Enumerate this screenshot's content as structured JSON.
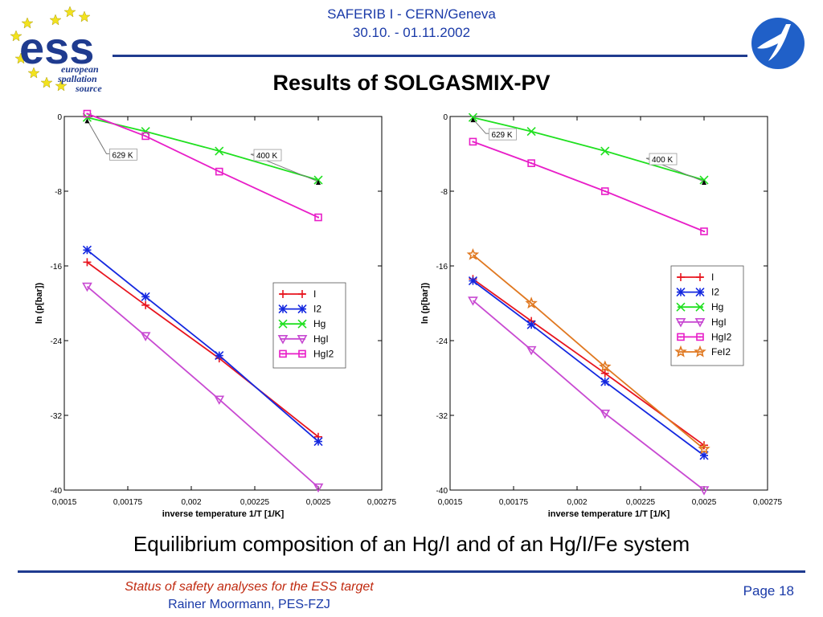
{
  "header": {
    "event": "SAFERIB I - CERN/Geneva",
    "dates": "30.10. - 01.11.2002"
  },
  "logo": {
    "letters": "ess",
    "line1": "european",
    "line2": "spallation",
    "line3": "source"
  },
  "slide_title": "Results of SOLGASMIX-PV",
  "caption": "Equilibrium composition of an Hg/I and of an Hg/I/Fe system",
  "footer": {
    "line1": "Status of safety analyses for the ESS target",
    "line2": "Rainer Moormann, PES-FZJ",
    "page": "Page 18"
  },
  "chart_data": [
    {
      "type": "line",
      "xlabel": "inverse temperature 1/T [1/K]",
      "ylabel": "ln (p[bar])",
      "xlim": [
        0.0015,
        0.00275
      ],
      "ylim": [
        -40,
        0
      ],
      "xticks": [
        "0,0015",
        "0,00175",
        "0,002",
        "0,00225",
        "0,0025",
        "0,00275"
      ],
      "yticks": [
        "0",
        "-8",
        "-16",
        "-24",
        "-32",
        "-40"
      ],
      "legend_position": "right-middle",
      "annotations": [
        {
          "text": "629 K",
          "x": 0.00159,
          "y": -0.2
        },
        {
          "text": "400 K",
          "x": 0.0025,
          "y": -6.8
        }
      ],
      "series": [
        {
          "name": "I",
          "color": "#e8141e",
          "marker": "plus",
          "x": [
            0.00159,
            0.00182,
            0.00211,
            0.0025
          ],
          "y": [
            -15.6,
            -20.2,
            -25.9,
            -34.3
          ]
        },
        {
          "name": "I2",
          "color": "#1428e0",
          "marker": "star",
          "x": [
            0.00159,
            0.00182,
            0.00211,
            0.0025
          ],
          "y": [
            -14.3,
            -19.3,
            -25.6,
            -34.8
          ]
        },
        {
          "name": "Hg",
          "color": "#20e020",
          "marker": "x",
          "x": [
            0.00159,
            0.00182,
            0.00211,
            0.0025
          ],
          "y": [
            -0.1,
            -1.6,
            -3.7,
            -6.8
          ]
        },
        {
          "name": "HgI",
          "color": "#c84ad2",
          "marker": "tri-down",
          "x": [
            0.00159,
            0.00182,
            0.00211,
            0.0025
          ],
          "y": [
            -18.2,
            -23.5,
            -30.3,
            -39.7
          ]
        },
        {
          "name": "HgI2",
          "color": "#e81ec8",
          "marker": "square",
          "x": [
            0.00159,
            0.00182,
            0.00211,
            0.0025
          ],
          "y": [
            0.3,
            -2.1,
            -5.9,
            -10.8
          ]
        }
      ]
    },
    {
      "type": "line",
      "xlabel": "inverse temperature 1/T [1/K]",
      "ylabel": "ln (p[bar])",
      "xlim": [
        0.0015,
        0.00275
      ],
      "ylim": [
        -40,
        0
      ],
      "xticks": [
        "0,0015",
        "0,00175",
        "0,002",
        "0,00225",
        "0,0025",
        "0,00275"
      ],
      "yticks": [
        "0",
        "-8",
        "-16",
        "-24",
        "-32",
        "-40"
      ],
      "legend_position": "right-middle",
      "annotations": [
        {
          "text": "629 K",
          "x": 0.00159,
          "y": -0.1
        },
        {
          "text": "400 K",
          "x": 0.0025,
          "y": -6.8
        }
      ],
      "series": [
        {
          "name": "I",
          "color": "#e8141e",
          "marker": "plus",
          "x": [
            0.00159,
            0.00182,
            0.00211,
            0.0025
          ],
          "y": [
            -17.4,
            -21.9,
            -27.5,
            -35.2
          ]
        },
        {
          "name": "I2",
          "color": "#1428e0",
          "marker": "star",
          "x": [
            0.00159,
            0.00182,
            0.00211,
            0.0025
          ],
          "y": [
            -17.6,
            -22.3,
            -28.4,
            -36.3
          ]
        },
        {
          "name": "Hg",
          "color": "#20e020",
          "marker": "x",
          "x": [
            0.00159,
            0.00182,
            0.00211,
            0.0025
          ],
          "y": [
            -0.1,
            -1.6,
            -3.7,
            -6.8
          ]
        },
        {
          "name": "HgI",
          "color": "#c84ad2",
          "marker": "tri-down",
          "x": [
            0.00159,
            0.00182,
            0.00211,
            0.0025
          ],
          "y": [
            -19.7,
            -25.0,
            -31.8,
            -40.0
          ]
        },
        {
          "name": "HgI2",
          "color": "#e81ec8",
          "marker": "square",
          "x": [
            0.00159,
            0.00182,
            0.00211,
            0.0025
          ],
          "y": [
            -2.7,
            -5.0,
            -8.0,
            -12.3
          ]
        },
        {
          "name": "FeI2",
          "color": "#e07820",
          "marker": "star5",
          "x": [
            0.00159,
            0.00182,
            0.00211,
            0.0025
          ],
          "y": [
            -14.8,
            -20.0,
            -26.8,
            -35.6
          ]
        }
      ]
    }
  ]
}
